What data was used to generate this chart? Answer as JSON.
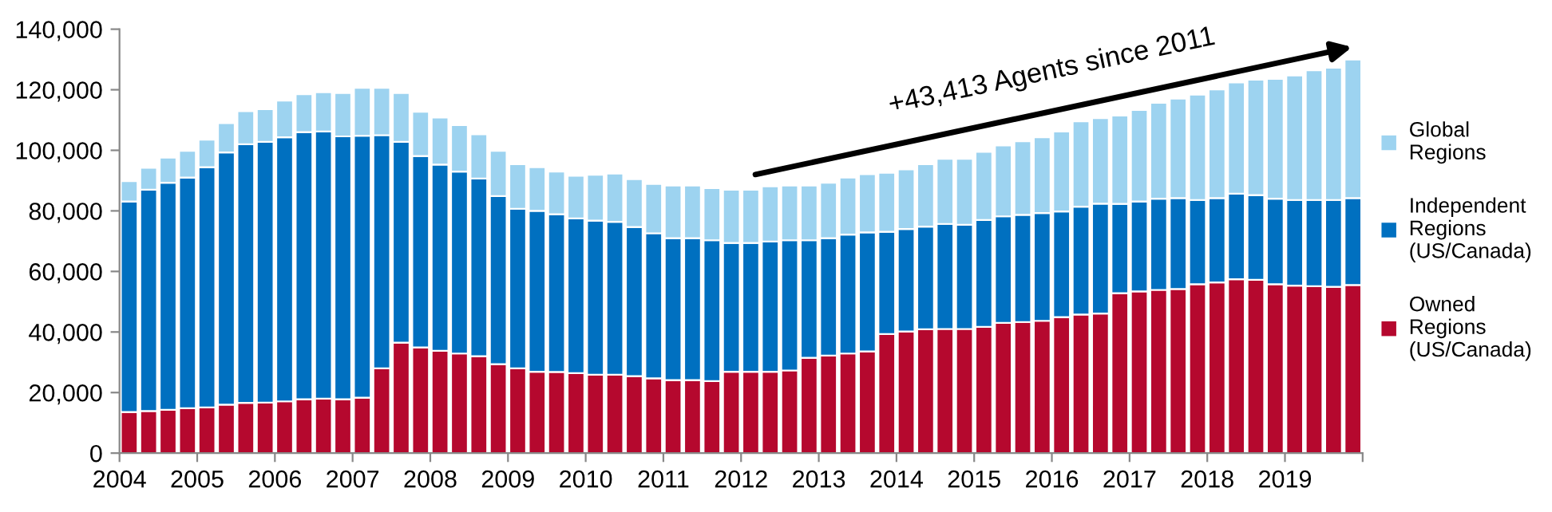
{
  "chart_data": {
    "type": "bar",
    "stacked": true,
    "x": [
      2004.125,
      2004.375,
      2004.625,
      2004.875,
      2005.125,
      2005.375,
      2005.625,
      2005.875,
      2006.125,
      2006.375,
      2006.625,
      2006.875,
      2007.125,
      2007.375,
      2007.625,
      2007.875,
      2008.125,
      2008.375,
      2008.625,
      2008.875,
      2009.125,
      2009.375,
      2009.625,
      2009.875,
      2010.125,
      2010.375,
      2010.625,
      2010.875,
      2011.125,
      2011.375,
      2011.625,
      2011.875,
      2012.125,
      2012.375,
      2012.625,
      2012.875,
      2013.125,
      2013.375,
      2013.625,
      2013.875,
      2014.125,
      2014.375,
      2014.625,
      2014.875,
      2015.125,
      2015.375,
      2015.625,
      2015.875,
      2016.125,
      2016.375,
      2016.625,
      2016.875,
      2017.125,
      2017.375,
      2017.625,
      2017.875,
      2018.125,
      2018.375,
      2018.625,
      2018.875,
      2019.125,
      2019.375,
      2019.625,
      2019.875
    ],
    "series": [
      {
        "name": "Owned\nRegions\n(US/Canada)",
        "color": "#b5082e",
        "values": [
          13600,
          13900,
          14300,
          14800,
          15100,
          16000,
          16600,
          16700,
          17100,
          17800,
          18000,
          17800,
          18300,
          28000,
          36500,
          34900,
          33800,
          32900,
          32000,
          29400,
          28000,
          26900,
          26800,
          26400,
          25900,
          25900,
          25400,
          24700,
          24100,
          24100,
          23800,
          26900,
          26900,
          26900,
          27300,
          31500,
          32200,
          32900,
          33600,
          39300,
          40200,
          40900,
          41000,
          41000,
          41700,
          43000,
          43300,
          43700,
          44900,
          45800,
          46100,
          52800,
          53400,
          53900,
          54200,
          55800,
          56400,
          57400,
          57200,
          55800,
          55300,
          55100,
          54900,
          55500
        ]
      },
      {
        "name": "Independent\nRegions\n(US/Canada)",
        "color": "#0070c0",
        "values": [
          69500,
          73100,
          75000,
          76200,
          79300,
          83300,
          85400,
          86100,
          87200,
          88200,
          88200,
          86800,
          86500,
          77000,
          66300,
          63200,
          61500,
          60100,
          58700,
          55500,
          52700,
          53100,
          52100,
          51100,
          50900,
          50500,
          49300,
          47900,
          46900,
          46900,
          46500,
          42500,
          42500,
          43000,
          43000,
          38800,
          38800,
          39300,
          39300,
          33800,
          33800,
          33900,
          34700,
          34400,
          35300,
          35200,
          35400,
          35600,
          34900,
          35600,
          36300,
          29500,
          29700,
          30100,
          30000,
          27800,
          27800,
          28300,
          28000,
          28200,
          28300,
          28500,
          28700,
          28700
        ]
      },
      {
        "name": "Global\nRegions",
        "color": "#9dd3f0",
        "values": [
          6700,
          7200,
          8300,
          8800,
          9100,
          9700,
          10900,
          10800,
          12100,
          12500,
          13000,
          14300,
          15800,
          15600,
          16100,
          14600,
          15500,
          15300,
          14600,
          14900,
          14700,
          14400,
          14100,
          14100,
          15100,
          15900,
          15800,
          16300,
          17400,
          17400,
          17200,
          17600,
          17600,
          18200,
          18100,
          18100,
          18300,
          18800,
          19200,
          19500,
          19700,
          20600,
          21500,
          21800,
          22500,
          23400,
          24300,
          25000,
          26400,
          28200,
          28200,
          29200,
          30200,
          31700,
          32900,
          34800,
          35900,
          36700,
          38100,
          39600,
          41100,
          42800,
          43700,
          45800
        ]
      }
    ],
    "xlim": [
      2004,
      2020
    ],
    "xticks": [
      2004,
      2005,
      2006,
      2007,
      2008,
      2009,
      2010,
      2011,
      2012,
      2013,
      2014,
      2015,
      2016,
      2017,
      2018,
      2019,
      {
        "value": 2020,
        "label": null
      }
    ],
    "ylim": [
      0,
      140000
    ],
    "yticks": [
      0,
      {
        "value": 20000,
        "label": "20,000"
      },
      {
        "value": 40000,
        "label": "40,000"
      },
      {
        "value": 60000,
        "label": "60,000"
      },
      {
        "value": 80000,
        "label": "80,000"
      },
      {
        "value": 100000,
        "label": "100,000"
      },
      {
        "value": 120000,
        "label": "120,000"
      },
      {
        "value": 140000,
        "label": "140,000"
      }
    ],
    "grid": false,
    "legend": "right",
    "annotations": [
      "+43,413 Agents since 2011"
    ]
  }
}
